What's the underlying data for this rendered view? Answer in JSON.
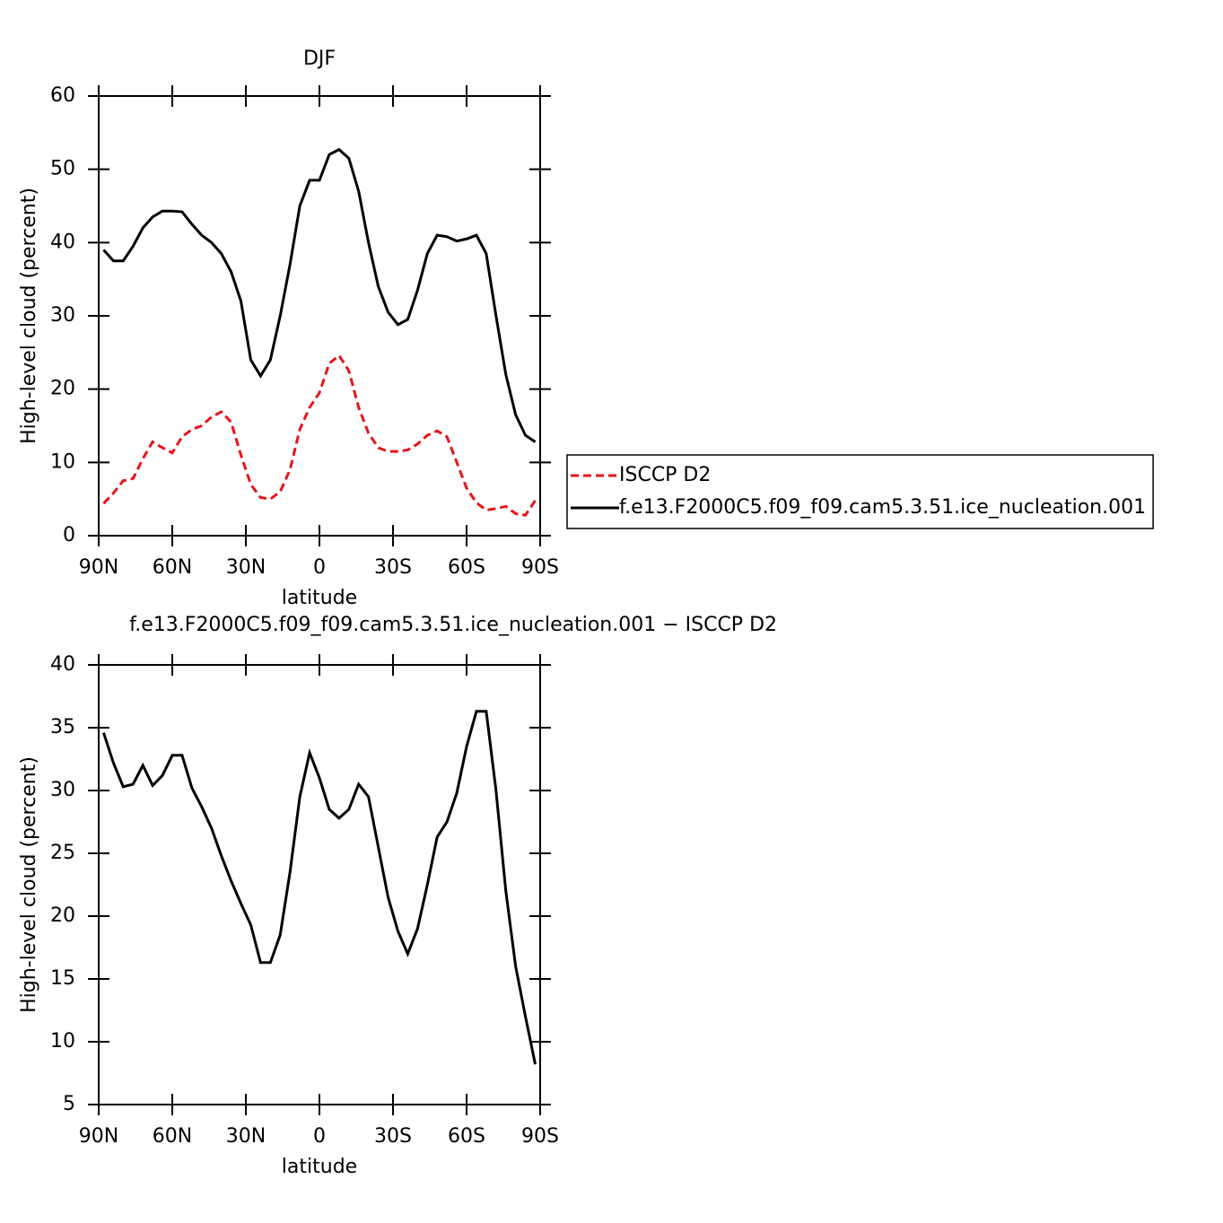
{
  "chart_data": [
    {
      "type": "line",
      "title": "DJF",
      "xlabel": "latitude",
      "ylabel": "High-level cloud (percent)",
      "x": [
        88,
        84,
        80,
        76,
        72,
        68,
        64,
        60,
        56,
        52,
        48,
        44,
        40,
        36,
        32,
        28,
        24,
        20,
        16,
        12,
        8,
        4,
        0,
        -4,
        -8,
        -12,
        -16,
        -20,
        -24,
        -28,
        -32,
        -36,
        -40,
        -44,
        -48,
        -52,
        -56,
        -60,
        -64,
        -68,
        -72,
        -76,
        -80,
        -84,
        -88
      ],
      "xlim": [
        90,
        -90
      ],
      "xticks": [
        {
          "value": 90,
          "label": "90N"
        },
        {
          "value": 60,
          "label": "60N"
        },
        {
          "value": 30,
          "label": "30N"
        },
        0,
        {
          "value": -30,
          "label": "30S"
        },
        {
          "value": -60,
          "label": "60S"
        },
        {
          "value": -90,
          "label": "90S"
        }
      ],
      "ylim": [
        0,
        60
      ],
      "yticks": [
        0,
        10,
        20,
        30,
        40,
        50,
        60
      ],
      "legend": "right",
      "series": [
        {
          "name": "ISCCP D2",
          "color": "#e8141b",
          "linestyle": "dashed",
          "values": [
            4.4,
            5.8,
            7.5,
            7.8,
            10.5,
            12.8,
            12,
            11.3,
            13.5,
            14.5,
            15,
            16.2,
            16.9,
            15.5,
            11,
            7,
            5.2,
            5,
            6,
            9,
            14.5,
            17.5,
            19.5,
            23.5,
            24.6,
            22.5,
            17.5,
            14,
            12,
            11.5,
            11.5,
            11.7,
            12.5,
            13.7,
            14.3,
            13.5,
            10,
            6.5,
            4.5,
            3.5,
            3.7,
            4,
            3,
            2.8,
            4.8
          ]
        },
        {
          "name": "f.e13.F2000C5.f09_f09.cam5.3.51.ice_nucleation.001",
          "color": "#000000",
          "linestyle": "solid",
          "values": [
            39,
            37.5,
            37.5,
            39.5,
            42,
            43.5,
            44.3,
            44.3,
            44.2,
            42.5,
            41,
            40,
            38.5,
            36,
            32,
            24,
            21.8,
            24,
            30,
            37,
            45,
            48.5,
            48.5,
            52,
            52.7,
            51.5,
            47,
            40,
            34,
            30.5,
            28.8,
            29.5,
            33.5,
            38.5,
            41,
            40.8,
            40.2,
            40.5,
            41,
            38.5,
            30,
            22,
            16.5,
            13.7,
            12.8
          ]
        }
      ]
    },
    {
      "type": "line",
      "title": "f.e13.F2000C5.f09_f09.cam5.3.51.ice_nucleation.001 − ISCCP D2",
      "xlabel": "latitude",
      "ylabel": "High-level cloud (percent)",
      "x": [
        88,
        84,
        80,
        76,
        72,
        68,
        64,
        60,
        56,
        52,
        48,
        44,
        40,
        36,
        32,
        28,
        24,
        20,
        16,
        12,
        8,
        4,
        0,
        -4,
        -8,
        -12,
        -16,
        -20,
        -24,
        -28,
        -32,
        -36,
        -40,
        -44,
        -48,
        -52,
        -56,
        -60,
        -64,
        -68,
        -72,
        -76,
        -80,
        -84,
        -88
      ],
      "xlim": [
        90,
        -90
      ],
      "xticks": [
        {
          "value": 90,
          "label": "90N"
        },
        {
          "value": 60,
          "label": "60N"
        },
        {
          "value": 30,
          "label": "30N"
        },
        0,
        {
          "value": -30,
          "label": "30S"
        },
        {
          "value": -60,
          "label": "60S"
        },
        {
          "value": -90,
          "label": "90S"
        }
      ],
      "ylim": [
        5,
        40
      ],
      "yticks": [
        5,
        10,
        15,
        20,
        25,
        30,
        35,
        40
      ],
      "series": [
        {
          "color": "#000000",
          "linestyle": "solid",
          "values": [
            34.6,
            32.2,
            30.3,
            30.5,
            32,
            30.4,
            31.2,
            32.8,
            32.8,
            30.2,
            28.7,
            27,
            24.8,
            22.8,
            21,
            19.3,
            16.3,
            16.3,
            18.5,
            23.5,
            29.5,
            33,
            31,
            28.5,
            27.8,
            28.5,
            30.5,
            29.5,
            25.5,
            21.5,
            18.8,
            17,
            19,
            22.5,
            26.3,
            27.5,
            29.8,
            33.5,
            36.3,
            36.3,
            30,
            22,
            16,
            12,
            8.2
          ]
        }
      ]
    }
  ]
}
